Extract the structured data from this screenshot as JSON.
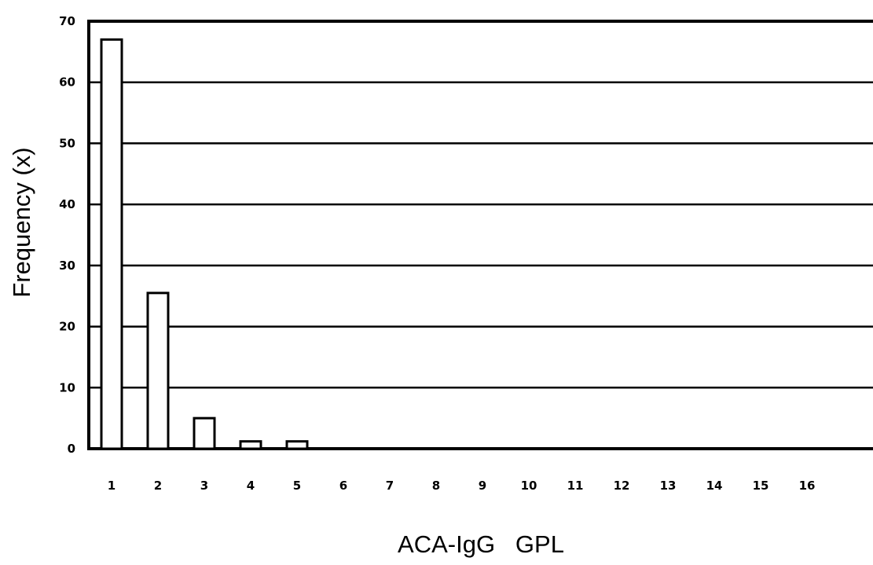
{
  "chart_data": {
    "type": "bar",
    "title": "",
    "xlabel": "ACA-IgG   GPL",
    "ylabel": "Frequency (x)",
    "categories": [
      "1",
      "2",
      "3",
      "4",
      "5",
      "6",
      "7",
      "8",
      "9",
      "10",
      "11",
      "12",
      "13",
      "14",
      "15",
      "16"
    ],
    "values": [
      67,
      25.5,
      5,
      1.2,
      1.2,
      0,
      0,
      0,
      0,
      0,
      0,
      0,
      0,
      0,
      0,
      0
    ],
    "ylim": [
      0,
      70
    ],
    "yticks": [
      "0",
      "10",
      "20",
      "30",
      "40",
      "50",
      "60",
      "70"
    ],
    "grid": true,
    "legend": "none",
    "colors": {
      "bar_fill": "#ffffff",
      "bar_stroke": "#000000",
      "grid": "#000000",
      "text": "#000000"
    }
  }
}
